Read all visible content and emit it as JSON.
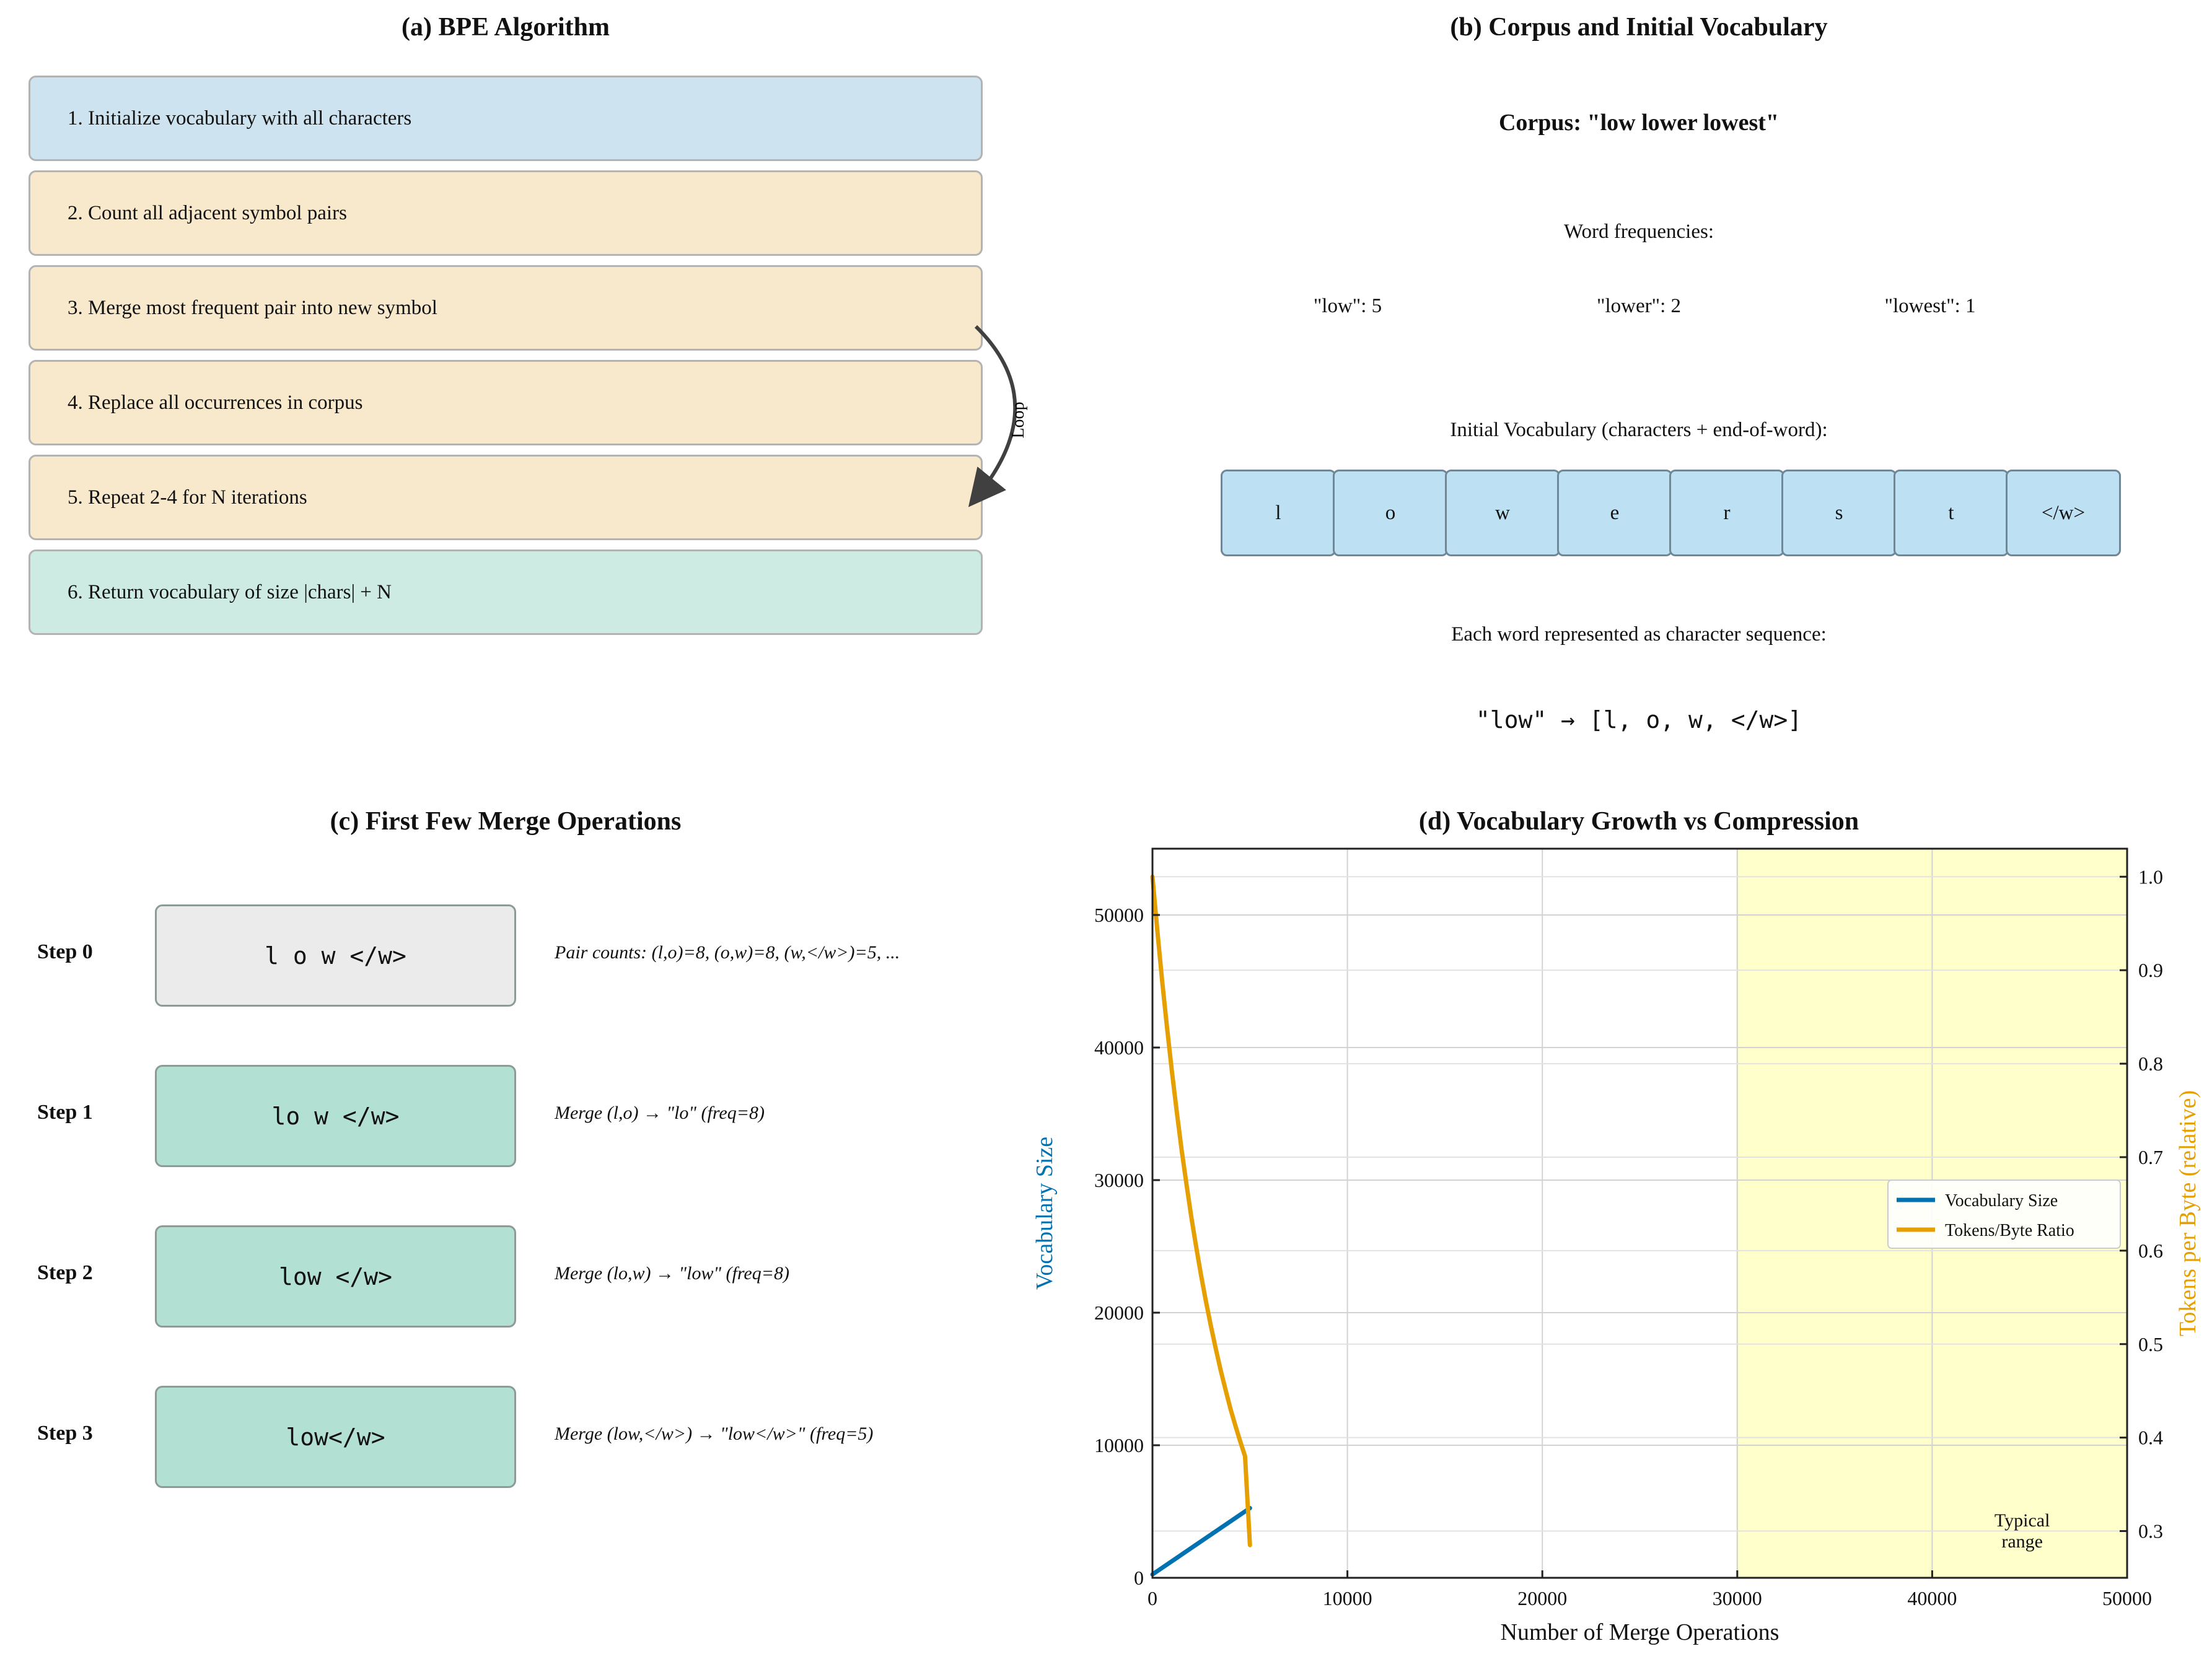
{
  "panel_a": {
    "title": "(a) BPE Algorithm",
    "steps": [
      {
        "label": "1. Initialize vocabulary with all characters",
        "color": "#cde3ef"
      },
      {
        "label": "2. Count all adjacent symbol pairs",
        "color": "#f9e9cc"
      },
      {
        "label": "3. Merge most frequent pair into new symbol",
        "color": "#f9e9cc"
      },
      {
        "label": "4. Replace all occurrences in corpus",
        "color": "#f9e9cc"
      },
      {
        "label": "5. Repeat 2-4 for N iterations",
        "color": "#f9e9cc"
      },
      {
        "label": "6. Return vocabulary of size |chars| + N",
        "color": "#cdebe2"
      }
    ],
    "loop_label": "Loop"
  },
  "panel_b": {
    "title": "(b) Corpus and Initial Vocabulary",
    "corpus": "Corpus: \"low lower lowest\"",
    "freq_heading": "Word frequencies:",
    "frequencies": [
      "\"low\": 5",
      "\"lower\": 2",
      "\"lowest\": 1"
    ],
    "vocab_heading": "Initial Vocabulary (characters + end-of-word):",
    "vocab": [
      "l",
      "o",
      "w",
      "e",
      "r",
      "s",
      "t",
      "</w>"
    ],
    "seq_heading": "Each word represented as character sequence:",
    "example": "\"low\" → [l, o, w, </w>]"
  },
  "panel_c": {
    "title": "(c) First Few Merge Operations",
    "steps": [
      {
        "label": "Step 0",
        "tokens": "l o w </w>",
        "note": "Pair counts: (l,o)=8, (o,w)=8, (w,</w>)=5, ..."
      },
      {
        "label": "Step 1",
        "tokens": "lo w </w>",
        "note": "Merge (l,o) → \"lo\" (freq=8)"
      },
      {
        "label": "Step 2",
        "tokens": "low </w>",
        "note": "Merge (lo,w) → \"low\" (freq=8)"
      },
      {
        "label": "Step 3",
        "tokens": "low</w>",
        "note": "Merge (low,</w>) → \"low</w>\" (freq=5)"
      }
    ]
  },
  "chart_data": {
    "type": "line",
    "title": "(d) Vocabulary Growth vs Compression",
    "xlabel": "Number of Merge Operations",
    "ylabel": "Vocabulary Size",
    "y2label": "Tokens per Byte (relative)",
    "xlim": [
      0,
      50000
    ],
    "ylim": [
      0,
      55000
    ],
    "y2lim": [
      0.25,
      1.03
    ],
    "xticks": [
      0,
      10000,
      20000,
      30000,
      40000,
      50000
    ],
    "yticks": [
      0,
      10000,
      20000,
      30000,
      40000,
      50000
    ],
    "y2ticks": [
      0.3,
      0.4,
      0.5,
      0.6,
      0.7,
      0.8,
      0.9,
      1.0
    ],
    "grid": true,
    "legend_position": "center-right",
    "shaded_region": {
      "x": [
        30000,
        50000
      ],
      "label": "Typical\nrange",
      "color": "#ffffcc"
    },
    "series": [
      {
        "name": "Vocabulary Size",
        "axis": "left",
        "color": "#0072b2",
        "x": [
          0,
          5000
        ],
        "y": [
          256,
          5256
        ]
      },
      {
        "name": "Tokens/Byte Ratio",
        "axis": "right",
        "color": "#e69f00",
        "x": [
          0,
          250,
          500,
          750,
          1000,
          1250,
          1500,
          1750,
          2000,
          2250,
          2500,
          2750,
          3000,
          3250,
          3500,
          3750,
          4000,
          4250,
          4500,
          4750,
          5000
        ],
        "y": [
          1.0,
          0.942,
          0.888,
          0.838,
          0.791,
          0.748,
          0.707,
          0.67,
          0.635,
          0.603,
          0.573,
          0.545,
          0.519,
          0.495,
          0.472,
          0.451,
          0.431,
          0.413,
          0.396,
          0.38,
          0.285
        ]
      }
    ]
  }
}
